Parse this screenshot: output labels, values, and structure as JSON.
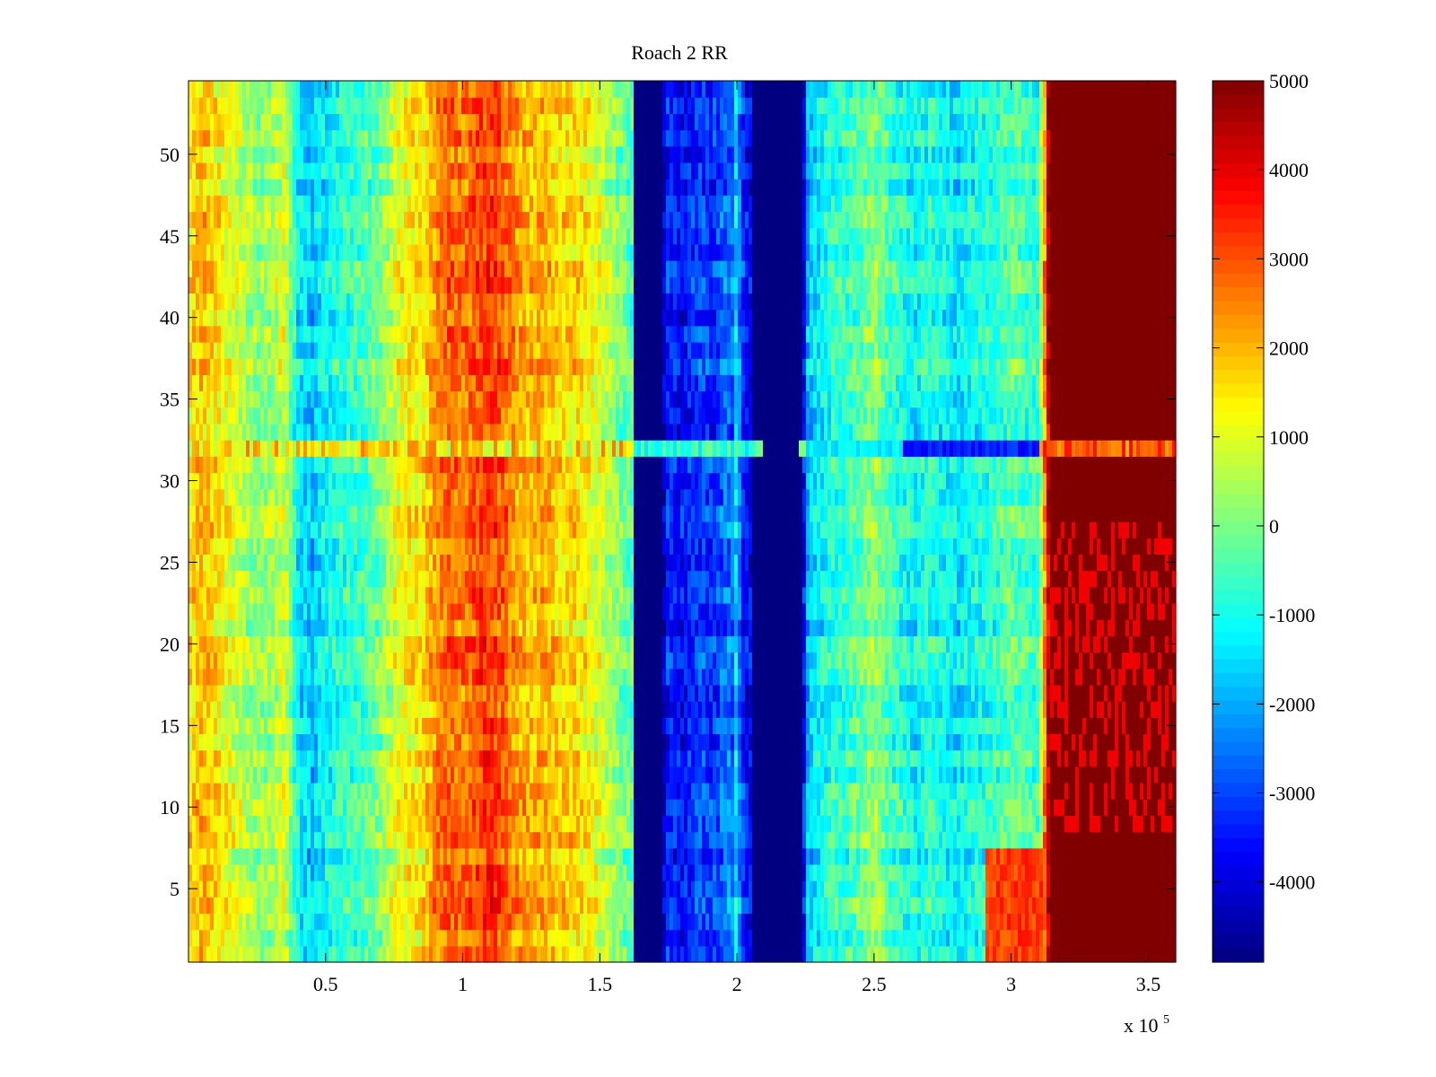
{
  "chart_data": {
    "type": "heatmap",
    "title": "Roach 2 RR",
    "xlabel": "",
    "ylabel": "",
    "x_multiplier": {
      "base": "x 10",
      "exponent": "5"
    },
    "xlim": [
      0,
      3.6
    ],
    "ylim": [
      0.5,
      54.5
    ],
    "rows": 54,
    "x_ticks": [
      {
        "value": 0.5,
        "label": "0.5"
      },
      {
        "value": 1,
        "label": "1"
      },
      {
        "value": 1.5,
        "label": "1.5"
      },
      {
        "value": 2,
        "label": "2"
      },
      {
        "value": 2.5,
        "label": "2.5"
      },
      {
        "value": 3,
        "label": "3"
      },
      {
        "value": 3.5,
        "label": "3.5"
      }
    ],
    "y_ticks": [
      {
        "value": 5,
        "label": "5"
      },
      {
        "value": 10,
        "label": "10"
      },
      {
        "value": 15,
        "label": "15"
      },
      {
        "value": 20,
        "label": "20"
      },
      {
        "value": 25,
        "label": "25"
      },
      {
        "value": 30,
        "label": "30"
      },
      {
        "value": 35,
        "label": "35"
      },
      {
        "value": 40,
        "label": "40"
      },
      {
        "value": 45,
        "label": "45"
      },
      {
        "value": 50,
        "label": "50"
      }
    ],
    "colorbar": {
      "colormap": "jet",
      "range": [
        -4900,
        5000
      ],
      "ticks": [
        {
          "value": 5000,
          "label": "5000"
        },
        {
          "value": 4000,
          "label": "4000"
        },
        {
          "value": 3000,
          "label": "3000"
        },
        {
          "value": 2000,
          "label": "2000"
        },
        {
          "value": 1000,
          "label": "1000"
        },
        {
          "value": 0,
          "label": "0"
        },
        {
          "value": -1000,
          "label": "-1000"
        },
        {
          "value": -2000,
          "label": "-2000"
        },
        {
          "value": -3000,
          "label": "-3000"
        },
        {
          "value": -4000,
          "label": "-4000"
        }
      ]
    },
    "column_profile": [
      {
        "x": 0.0,
        "value": 1400
      },
      {
        "x": 0.04,
        "value": 1900
      },
      {
        "x": 0.08,
        "value": 1700
      },
      {
        "x": 0.12,
        "value": 1300
      },
      {
        "x": 0.16,
        "value": 1000
      },
      {
        "x": 0.2,
        "value": 600
      },
      {
        "x": 0.25,
        "value": 100
      },
      {
        "x": 0.3,
        "value": 300
      },
      {
        "x": 0.35,
        "value": 900
      },
      {
        "x": 0.4,
        "value": -1300
      },
      {
        "x": 0.45,
        "value": -1800
      },
      {
        "x": 0.5,
        "value": -1200
      },
      {
        "x": 0.55,
        "value": -900
      },
      {
        "x": 0.6,
        "value": -700
      },
      {
        "x": 0.65,
        "value": -400
      },
      {
        "x": 0.7,
        "value": 0
      },
      {
        "x": 0.75,
        "value": 900
      },
      {
        "x": 0.8,
        "value": 1300
      },
      {
        "x": 0.85,
        "value": 1400
      },
      {
        "x": 0.9,
        "value": 2300
      },
      {
        "x": 0.95,
        "value": 2800
      },
      {
        "x": 1.0,
        "value": 2600
      },
      {
        "x": 1.05,
        "value": 3000
      },
      {
        "x": 1.1,
        "value": 3300
      },
      {
        "x": 1.15,
        "value": 2800
      },
      {
        "x": 1.2,
        "value": 2200
      },
      {
        "x": 1.25,
        "value": 1900
      },
      {
        "x": 1.3,
        "value": 2100
      },
      {
        "x": 1.35,
        "value": 1600
      },
      {
        "x": 1.4,
        "value": 1700
      },
      {
        "x": 1.45,
        "value": 1300
      },
      {
        "x": 1.5,
        "value": 900
      },
      {
        "x": 1.55,
        "value": 200
      },
      {
        "x": 1.6,
        "value": -200
      },
      {
        "x": 1.62,
        "value": -600
      },
      {
        "x": 1.63,
        "value": -4900
      },
      {
        "x": 1.73,
        "value": -4900
      },
      {
        "x": 1.74,
        "value": -3300
      },
      {
        "x": 1.8,
        "value": -3700
      },
      {
        "x": 1.86,
        "value": -3100
      },
      {
        "x": 1.92,
        "value": -3200
      },
      {
        "x": 1.96,
        "value": -2600
      },
      {
        "x": 1.99,
        "value": -2600
      },
      {
        "x": 2.0,
        "value": -1000
      },
      {
        "x": 2.01,
        "value": -2600
      },
      {
        "x": 2.03,
        "value": -3600
      },
      {
        "x": 2.05,
        "value": -3800
      },
      {
        "x": 2.06,
        "value": -4900
      },
      {
        "x": 2.24,
        "value": -4900
      },
      {
        "x": 2.25,
        "value": -2300
      },
      {
        "x": 2.28,
        "value": -1500
      },
      {
        "x": 2.35,
        "value": -800
      },
      {
        "x": 2.4,
        "value": -700
      },
      {
        "x": 2.45,
        "value": -300
      },
      {
        "x": 2.5,
        "value": 200
      },
      {
        "x": 2.55,
        "value": -500
      },
      {
        "x": 2.6,
        "value": -900
      },
      {
        "x": 2.65,
        "value": -1200
      },
      {
        "x": 2.7,
        "value": -800
      },
      {
        "x": 2.75,
        "value": -1100
      },
      {
        "x": 2.8,
        "value": -1400
      },
      {
        "x": 2.85,
        "value": -1100
      },
      {
        "x": 2.9,
        "value": -900
      },
      {
        "x": 2.95,
        "value": -700
      },
      {
        "x": 3.0,
        "value": -300
      },
      {
        "x": 3.05,
        "value": -500
      },
      {
        "x": 3.1,
        "value": -800
      },
      {
        "x": 3.12,
        "value": 2000
      },
      {
        "x": 3.14,
        "value": 5000
      },
      {
        "x": 3.6,
        "value": 5000
      }
    ],
    "highlighted_row": {
      "row": 32,
      "description_values": [
        1800,
        2500,
        -700,
        -3800,
        -1400,
        3000
      ]
    }
  }
}
